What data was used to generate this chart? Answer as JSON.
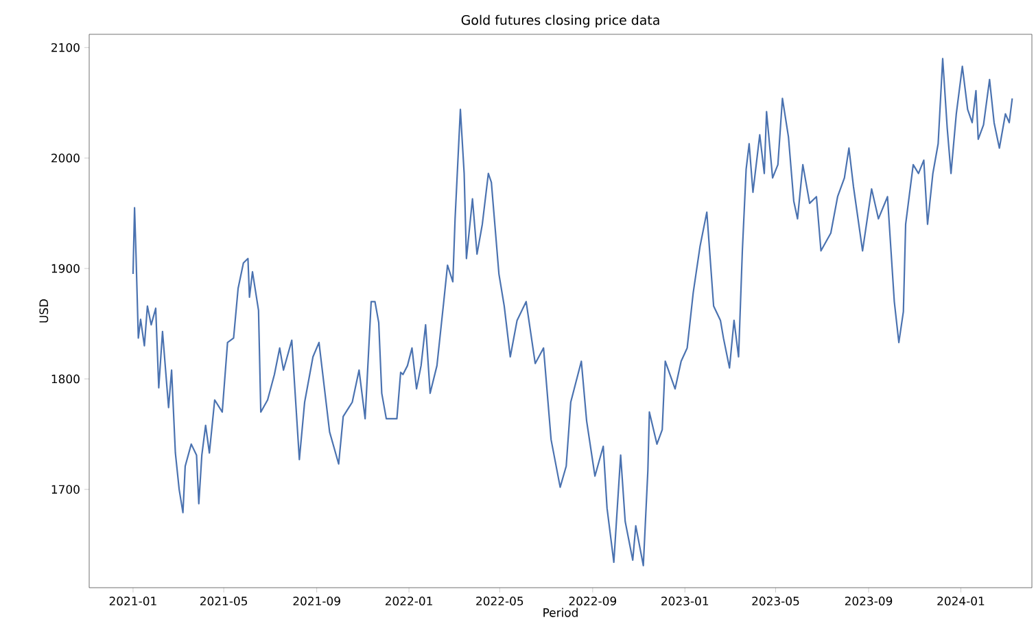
{
  "chart_data": {
    "type": "line",
    "title": "Gold futures closing price data",
    "xlabel": "Period",
    "ylabel": "USD",
    "x": [
      "2021-01-01",
      "2021-01-03",
      "2021-01-05",
      "2021-01-08",
      "2021-01-11",
      "2021-01-16",
      "2021-01-20",
      "2021-01-25",
      "2021-01-31",
      "2021-02-04",
      "2021-02-09",
      "2021-02-17",
      "2021-02-21",
      "2021-02-26",
      "2021-03-03",
      "2021-03-08",
      "2021-03-11",
      "2021-03-19",
      "2021-03-26",
      "2021-03-29",
      "2021-04-02",
      "2021-04-07",
      "2021-04-12",
      "2021-04-19",
      "2021-04-29",
      "2021-05-06",
      "2021-05-14",
      "2021-05-20",
      "2021-05-27",
      "2021-06-02",
      "2021-06-04",
      "2021-06-08",
      "2021-06-16",
      "2021-06-19",
      "2021-06-28",
      "2021-07-07",
      "2021-07-14",
      "2021-07-19",
      "2021-07-30",
      "2021-08-09",
      "2021-08-16",
      "2021-08-27",
      "2021-09-04",
      "2021-09-18",
      "2021-09-30",
      "2021-10-06",
      "2021-10-18",
      "2021-10-27",
      "2021-11-04",
      "2021-11-12",
      "2021-11-17",
      "2021-11-22",
      "2021-11-26",
      "2021-12-02",
      "2021-12-16",
      "2021-12-21",
      "2021-12-24",
      "2021-12-30",
      "2022-01-05",
      "2022-01-11",
      "2022-01-17",
      "2022-01-23",
      "2022-01-29",
      "2022-02-07",
      "2022-02-16",
      "2022-02-21",
      "2022-02-28",
      "2022-03-03",
      "2022-03-10",
      "2022-03-15",
      "2022-03-18",
      "2022-03-26",
      "2022-04-01",
      "2022-04-08",
      "2022-04-16",
      "2022-04-20",
      "2022-04-30",
      "2022-05-07",
      "2022-05-15",
      "2022-05-24",
      "2022-06-05",
      "2022-06-17",
      "2022-06-28",
      "2022-07-08",
      "2022-07-20",
      "2022-07-28",
      "2022-08-03",
      "2022-08-17",
      "2022-08-24",
      "2022-09-04",
      "2022-09-15",
      "2022-09-20",
      "2022-09-29",
      "2022-10-08",
      "2022-10-14",
      "2022-10-24",
      "2022-10-28",
      "2022-11-07",
      "2022-11-13",
      "2022-11-15",
      "2022-11-25",
      "2022-12-02",
      "2022-12-06",
      "2022-12-19",
      "2022-12-27",
      "2023-01-04",
      "2023-01-12",
      "2023-01-21",
      "2023-01-30",
      "2023-02-08",
      "2023-02-17",
      "2023-02-21",
      "2023-03-01",
      "2023-03-07",
      "2023-03-13",
      "2023-03-18",
      "2023-03-23",
      "2023-03-27",
      "2023-04-01",
      "2023-04-10",
      "2023-04-16",
      "2023-04-19",
      "2023-04-27",
      "2023-05-04",
      "2023-05-10",
      "2023-05-18",
      "2023-05-25",
      "2023-05-30",
      "2023-06-06",
      "2023-06-15",
      "2023-06-24",
      "2023-06-30",
      "2023-07-13",
      "2023-07-22",
      "2023-07-31",
      "2023-08-06",
      "2023-08-12",
      "2023-08-24",
      "2023-09-05",
      "2023-09-14",
      "2023-09-26",
      "2023-10-05",
      "2023-10-11",
      "2023-10-17",
      "2023-10-20",
      "2023-10-30",
      "2023-11-06",
      "2023-11-13",
      "2023-11-18",
      "2023-11-25",
      "2023-12-02",
      "2023-12-08",
      "2023-12-14",
      "2023-12-19",
      "2023-12-26",
      "2024-01-03",
      "2024-01-10",
      "2024-01-16",
      "2024-01-21",
      "2024-01-24",
      "2024-01-31",
      "2024-02-08",
      "2024-02-14",
      "2024-02-21",
      "2024-02-29",
      "2024-03-05",
      "2024-03-09"
    ],
    "series": [
      {
        "color": "#4a72b0",
        "values": [
          1895,
          1955,
          1911,
          1837,
          1854,
          1830,
          1866,
          1849,
          1864,
          1792,
          1843,
          1774,
          1808,
          1733,
          1700,
          1679,
          1721,
          1741,
          1731,
          1687,
          1731,
          1758,
          1733,
          1781,
          1770,
          1833,
          1837,
          1882,
          1905,
          1909,
          1874,
          1897,
          1862,
          1770,
          1781,
          1804,
          1828,
          1808,
          1835,
          1727,
          1779,
          1820,
          1833,
          1752,
          1723,
          1766,
          1779,
          1808,
          1764,
          1870,
          1870,
          1851,
          1787,
          1764,
          1764,
          1806,
          1804,
          1812,
          1828,
          1791,
          1812,
          1849,
          1787,
          1812,
          1870,
          1903,
          1888,
          1945,
          2044,
          1986,
          1909,
          1963,
          1913,
          1940,
          1986,
          1978,
          1895,
          1866,
          1820,
          1853,
          1870,
          1814,
          1828,
          1745,
          1702,
          1721,
          1779,
          1816,
          1762,
          1712,
          1739,
          1683,
          1634,
          1731,
          1671,
          1636,
          1667,
          1631,
          1717,
          1770,
          1741,
          1754,
          1816,
          1791,
          1816,
          1828,
          1878,
          1920,
          1951,
          1866,
          1853,
          1837,
          1810,
          1853,
          1820,
          1916,
          1990,
          2013,
          1969,
          2021,
          1986,
          2042,
          1982,
          1994,
          2054,
          2019,
          1961,
          1945,
          1994,
          1959,
          1965,
          1916,
          1932,
          1965,
          1982,
          2009,
          1974,
          1916,
          1972,
          1945,
          1965,
          1870,
          1833,
          1861,
          1940,
          1994,
          1986,
          1998,
          1940,
          1986,
          2013,
          2090,
          2027,
          1986,
          2040,
          2083,
          2044,
          2032,
          2061,
          2017,
          2030,
          2071,
          2032,
          2009,
          2040,
          2032,
          2054
        ]
      }
    ],
    "xlim": [
      "2020-11-04",
      "2024-04-04"
    ],
    "ylim": [
      1611,
      2112
    ],
    "xticks": [
      "2021-01",
      "2021-05",
      "2021-09",
      "2022-01",
      "2022-05",
      "2022-09",
      "2023-01",
      "2023-05",
      "2023-09",
      "2024-01"
    ],
    "yticks": [
      1700,
      1800,
      1900,
      2000,
      2100
    ],
    "grid": false,
    "line_style": "solid",
    "marker": "none"
  }
}
